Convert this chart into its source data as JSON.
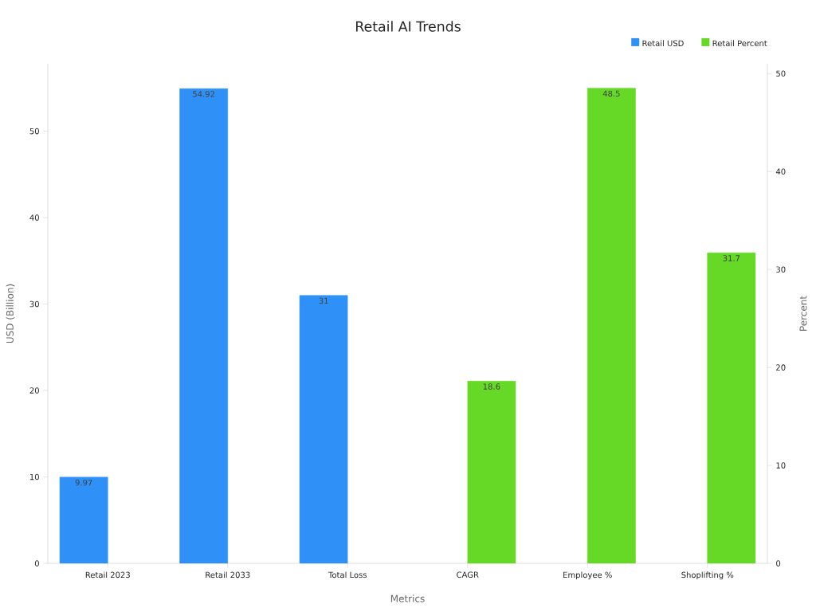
{
  "chart_data": {
    "type": "bar",
    "title": "Retail AI Trends",
    "xlabel": "Metrics",
    "ylabel": "USD (Billion)",
    "y2label": "Percent",
    "categories": [
      "Retail 2023",
      "Retail 2033",
      "Total Loss",
      "CAGR",
      "Employee %",
      "Shoplifting %"
    ],
    "series": [
      {
        "name": "Retail USD",
        "color": "#2f91f7",
        "values": [
          9.97,
          54.92,
          31,
          null,
          null,
          null
        ]
      },
      {
        "name": "Retail Percent",
        "color": "#66d926",
        "axis": "y2",
        "values": [
          null,
          null,
          null,
          18.6,
          48.5,
          31.7
        ]
      }
    ],
    "ylim": [
      0,
      57.8
    ],
    "yticks": [
      0,
      10,
      20,
      30,
      40,
      50
    ],
    "y2lim": [
      0,
      51
    ],
    "y2ticks": [
      0,
      10,
      20,
      30,
      40,
      50
    ],
    "data_labels": true,
    "legend": "top right"
  }
}
